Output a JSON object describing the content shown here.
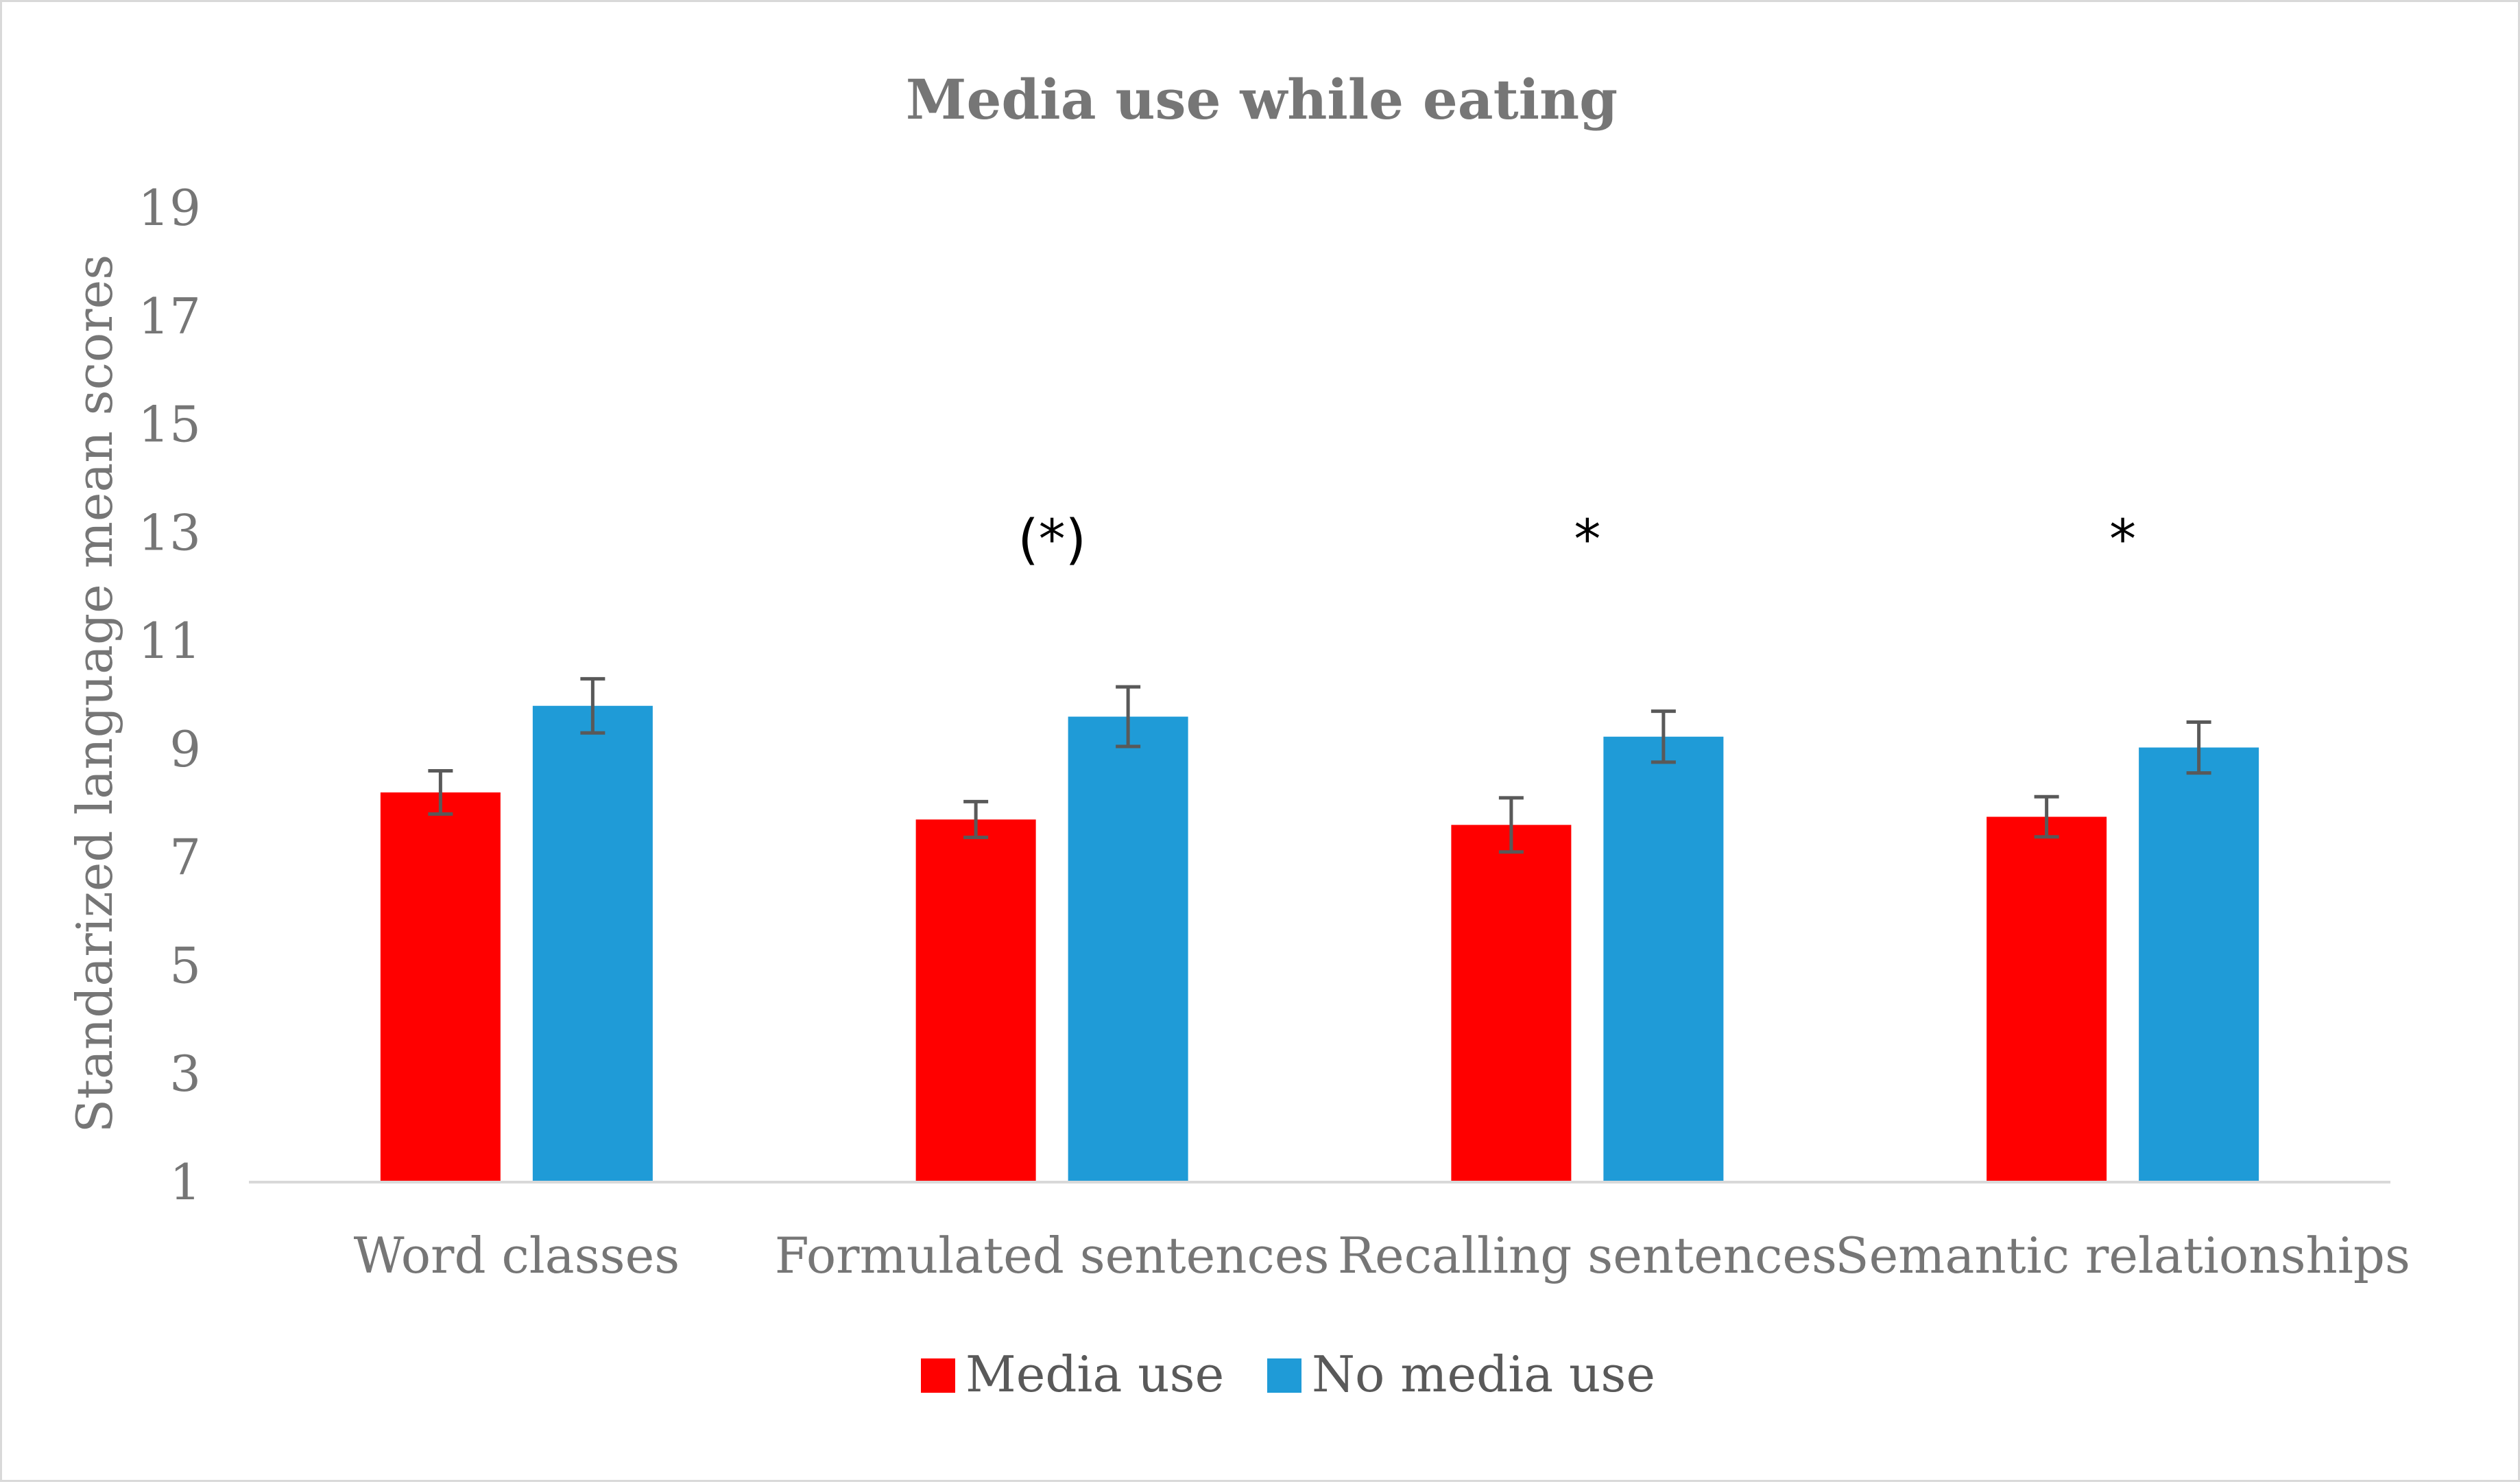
{
  "chart_data": {
    "type": "bar",
    "title": "Media use while eating",
    "xlabel": "",
    "ylabel": "Standarized language mean scores",
    "ylim": [
      1,
      19
    ],
    "yticks": [
      "1",
      "3",
      "5",
      "7",
      "9",
      "11",
      "13",
      "15",
      "17",
      "19"
    ],
    "categories": [
      "Word classes",
      "Formulated sentences",
      "Recalling sentences",
      "Semantic relationships"
    ],
    "series": [
      {
        "name": "Media use",
        "color": "#ff0000",
        "values": [
          8.2,
          7.7,
          7.6,
          7.75
        ],
        "errors": [
          0.4,
          0.33,
          0.5,
          0.37
        ]
      },
      {
        "name": "No media use",
        "color": "#1f9bd7",
        "values": [
          9.8,
          9.6,
          9.23,
          9.03
        ],
        "errors": [
          0.5,
          0.55,
          0.47,
          0.47
        ]
      }
    ],
    "annotations": [
      "",
      "(*)",
      "*",
      "*"
    ],
    "legend_position": "bottom",
    "grid": false
  }
}
